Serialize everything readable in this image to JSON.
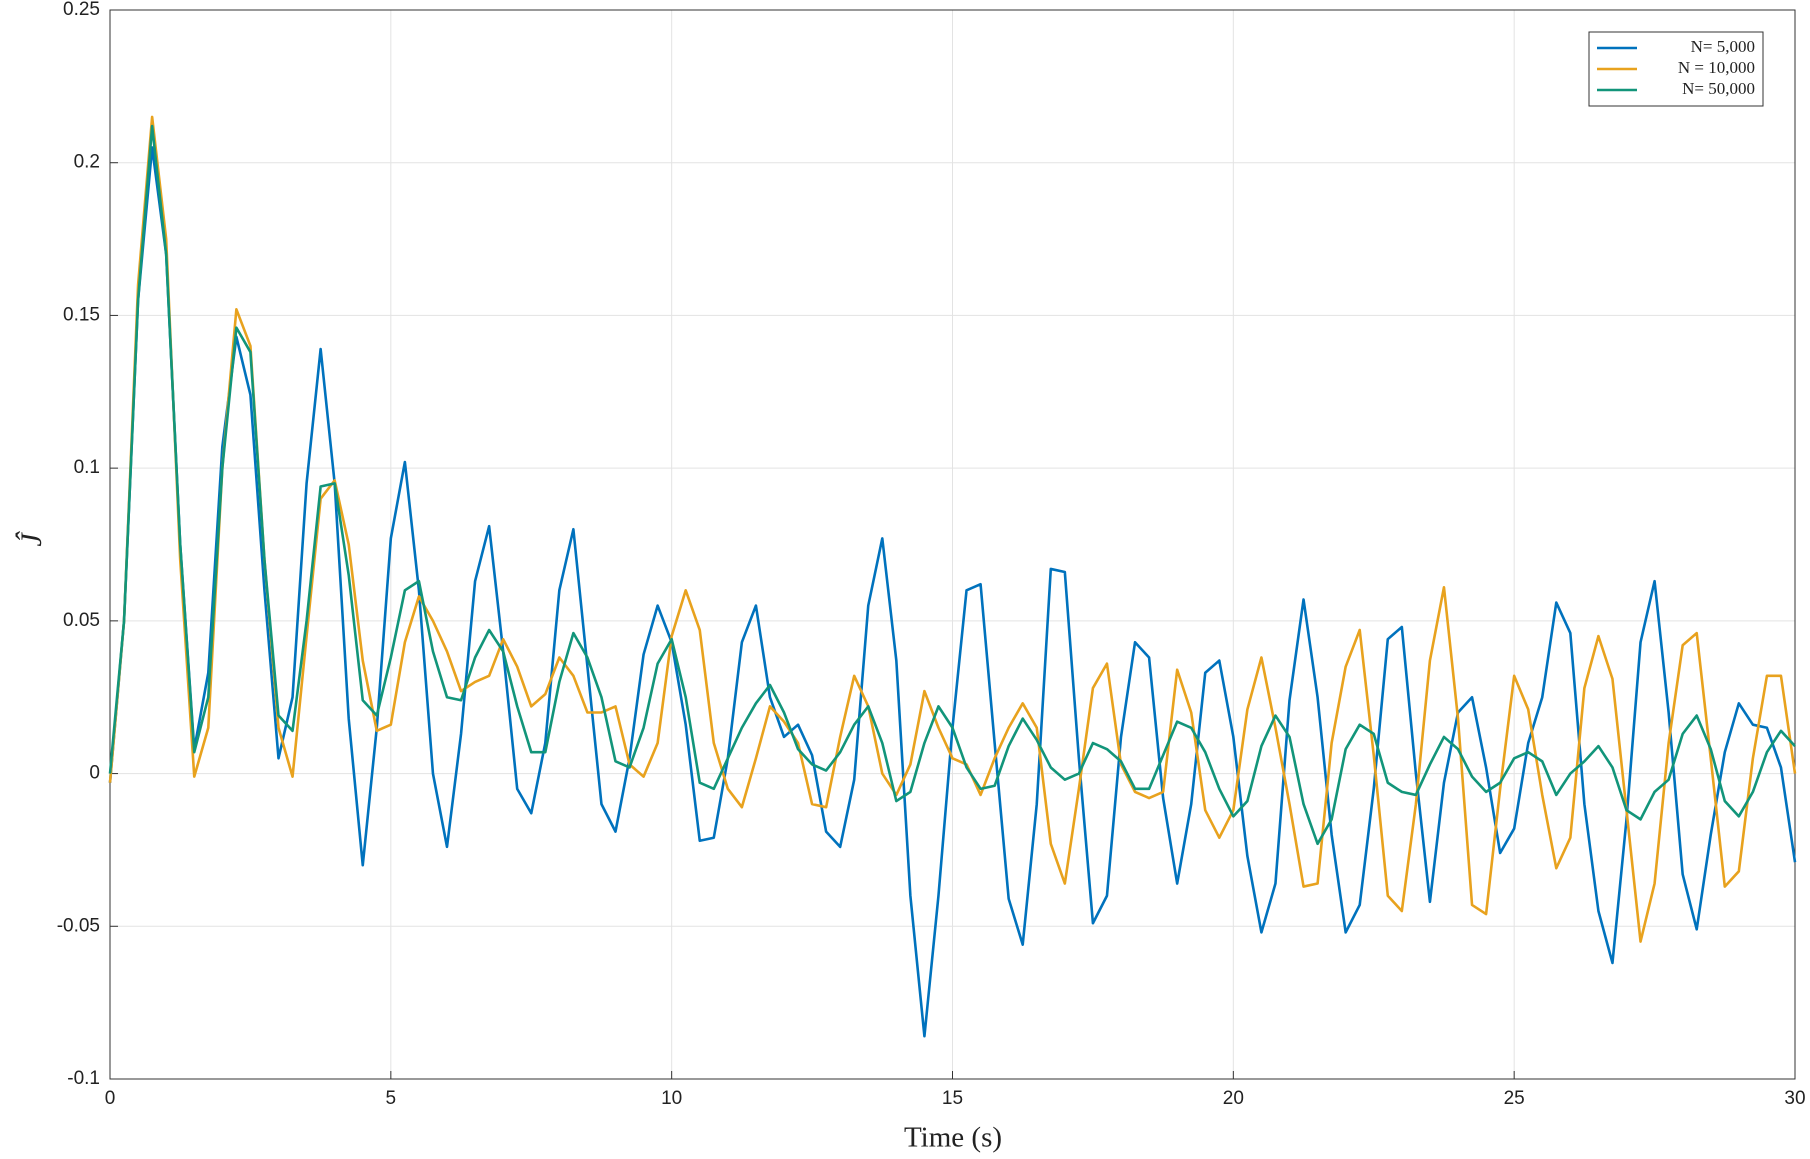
{
  "chart_data": {
    "type": "line",
    "xlabel": "Time (s)",
    "ylabel": "Ĵ",
    "x": [
      0,
      0.25,
      0.5,
      0.75,
      1,
      1.25,
      1.5,
      1.75,
      2,
      2.25,
      2.5,
      2.75,
      3,
      3.25,
      3.5,
      3.75,
      4,
      4.25,
      4.5,
      4.75,
      5,
      5.25,
      5.5,
      5.75,
      6,
      6.25,
      6.5,
      6.75,
      7,
      7.25,
      7.5,
      7.75,
      8,
      8.25,
      8.5,
      8.75,
      9,
      9.25,
      9.5,
      9.75,
      10,
      10.25,
      10.5,
      10.75,
      11,
      11.25,
      11.5,
      11.75,
      12,
      12.25,
      12.5,
      12.75,
      13,
      13.25,
      13.5,
      13.75,
      14,
      14.25,
      14.5,
      14.75,
      15,
      15.25,
      15.5,
      15.75,
      16,
      16.25,
      16.5,
      16.75,
      17,
      17.25,
      17.5,
      17.75,
      18,
      18.25,
      18.5,
      18.75,
      19,
      19.25,
      19.5,
      19.75,
      20,
      20.25,
      20.5,
      20.75,
      21,
      21.25,
      21.5,
      21.75,
      22,
      22.25,
      22.5,
      22.75,
      23,
      23.25,
      23.5,
      23.75,
      24,
      24.25,
      24.5,
      24.75,
      25,
      25.25,
      25.5,
      25.75,
      26,
      26.25,
      26.5,
      26.75,
      27,
      27.25,
      27.5,
      27.75,
      28,
      28.25,
      28.5,
      28.75,
      29,
      29.25,
      29.5,
      29.75,
      30
    ],
    "series": [
      {
        "name": "N= 5,000",
        "color": "#0072bd",
        "values": [
          -0.003,
          0.05,
          0.155,
          0.205,
          0.17,
          0.075,
          0.008,
          0.033,
          0.107,
          0.143,
          0.124,
          0.06,
          0.005,
          0.025,
          0.095,
          0.139,
          0.095,
          0.018,
          -0.03,
          0.015,
          0.077,
          0.102,
          0.06,
          0.0,
          -0.024,
          0.013,
          0.063,
          0.081,
          0.04,
          -0.005,
          -0.013,
          0.01,
          0.06,
          0.08,
          0.035,
          -0.01,
          -0.019,
          0.005,
          0.039,
          0.055,
          0.043,
          0.016,
          -0.022,
          -0.021,
          0.005,
          0.043,
          0.055,
          0.025,
          0.012,
          0.016,
          0.006,
          -0.019,
          -0.024,
          -0.002,
          0.055,
          0.077,
          0.037,
          -0.04,
          -0.086,
          -0.04,
          0.015,
          0.06,
          0.062,
          0.01,
          -0.041,
          -0.056,
          -0.01,
          0.067,
          0.066,
          0.005,
          -0.049,
          -0.04,
          0.012,
          0.043,
          0.038,
          -0.008,
          -0.036,
          -0.01,
          0.033,
          0.037,
          0.012,
          -0.027,
          -0.052,
          -0.036,
          0.024,
          0.057,
          0.025,
          -0.02,
          -0.052,
          -0.043,
          -0.005,
          0.044,
          0.048,
          0.0,
          -0.042,
          -0.003,
          0.02,
          0.025,
          0.002,
          -0.026,
          -0.018,
          0.01,
          0.025,
          0.056,
          0.046,
          -0.01,
          -0.045,
          -0.062,
          -0.015,
          0.043,
          0.063,
          0.02,
          -0.033,
          -0.051,
          -0.02,
          0.007,
          0.023,
          0.016,
          0.015,
          0.002,
          -0.029
        ]
      },
      {
        "name": "N = 10,000",
        "color": "#e8a21e",
        "values": [
          -0.003,
          0.05,
          0.16,
          0.215,
          0.175,
          0.07,
          -0.001,
          0.015,
          0.1,
          0.152,
          0.14,
          0.07,
          0.015,
          -0.001,
          0.045,
          0.09,
          0.096,
          0.075,
          0.037,
          0.014,
          0.016,
          0.043,
          0.058,
          0.05,
          0.04,
          0.027,
          0.03,
          0.032,
          0.044,
          0.035,
          0.022,
          0.026,
          0.038,
          0.032,
          0.02,
          0.02,
          0.022,
          0.003,
          -0.001,
          0.01,
          0.045,
          0.06,
          0.047,
          0.01,
          -0.005,
          -0.011,
          0.005,
          0.022,
          0.017,
          0.01,
          -0.01,
          -0.011,
          0.012,
          0.032,
          0.022,
          0.0,
          -0.007,
          0.003,
          0.027,
          0.015,
          0.005,
          0.003,
          -0.007,
          0.005,
          0.015,
          0.023,
          0.015,
          -0.023,
          -0.036,
          -0.005,
          0.028,
          0.036,
          0.003,
          -0.006,
          -0.008,
          -0.006,
          0.034,
          0.02,
          -0.012,
          -0.021,
          -0.012,
          0.021,
          0.038,
          0.015,
          -0.01,
          -0.037,
          -0.036,
          0.01,
          0.035,
          0.047,
          0.006,
          -0.04,
          -0.045,
          -0.01,
          0.037,
          0.061,
          0.018,
          -0.043,
          -0.046,
          -0.005,
          0.032,
          0.021,
          -0.007,
          -0.031,
          -0.021,
          0.028,
          0.045,
          0.031,
          -0.012,
          -0.055,
          -0.036,
          0.01,
          0.042,
          0.046,
          0.005,
          -0.037,
          -0.032,
          0.005,
          0.032,
          0.032,
          0.0
        ]
      },
      {
        "name": "N= 50,000",
        "color": "#12957a",
        "values": [
          0.0,
          0.05,
          0.155,
          0.212,
          0.17,
          0.075,
          0.007,
          0.025,
          0.1,
          0.146,
          0.138,
          0.07,
          0.019,
          0.014,
          0.05,
          0.094,
          0.095,
          0.065,
          0.024,
          0.019,
          0.038,
          0.06,
          0.063,
          0.04,
          0.025,
          0.024,
          0.038,
          0.047,
          0.04,
          0.022,
          0.007,
          0.007,
          0.03,
          0.046,
          0.038,
          0.025,
          0.004,
          0.002,
          0.015,
          0.036,
          0.044,
          0.025,
          -0.003,
          -0.005,
          0.005,
          0.015,
          0.023,
          0.029,
          0.02,
          0.008,
          0.003,
          0.001,
          0.007,
          0.016,
          0.022,
          0.01,
          -0.009,
          -0.006,
          0.01,
          0.022,
          0.015,
          0.002,
          -0.005,
          -0.004,
          0.009,
          0.018,
          0.011,
          0.002,
          -0.002,
          0.0,
          0.01,
          0.008,
          0.004,
          -0.005,
          -0.005,
          0.006,
          0.017,
          0.015,
          0.007,
          -0.005,
          -0.014,
          -0.009,
          0.009,
          0.019,
          0.012,
          -0.01,
          -0.023,
          -0.015,
          0.008,
          0.016,
          0.013,
          -0.003,
          -0.006,
          -0.007,
          0.003,
          0.012,
          0.008,
          -0.001,
          -0.006,
          -0.003,
          0.005,
          0.007,
          0.004,
          -0.007,
          0.0,
          0.004,
          0.009,
          0.002,
          -0.012,
          -0.015,
          -0.006,
          -0.002,
          0.013,
          0.019,
          0.008,
          -0.009,
          -0.014,
          -0.006,
          0.007,
          0.014,
          0.009
        ]
      }
    ],
    "xlim": [
      0,
      30
    ],
    "xticks": [
      0,
      5,
      10,
      15,
      20,
      25,
      30
    ],
    "ylim": [
      -0.1,
      0.25
    ],
    "yticks": [
      -0.1,
      -0.05,
      0,
      0.05,
      0.1,
      0.15,
      0.2,
      0.25
    ],
    "grid": true,
    "legend": "northeast"
  }
}
